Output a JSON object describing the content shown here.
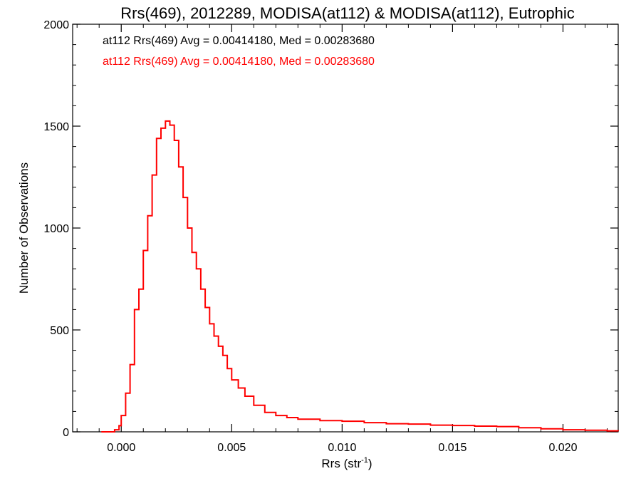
{
  "chart_data": {
    "type": "line",
    "title": "Rrs(469), 2012289, MODISA(at112) & MODISA(at112), Eutrophic",
    "xlabel_main": "Rrs (str",
    "xlabel_sup": "-1",
    "xlabel_close": ")",
    "ylabel": "Number of Observations",
    "xlim": [
      -0.0022,
      0.0225
    ],
    "ylim": [
      0,
      2000
    ],
    "x_ticks": [
      0.0,
      0.005,
      0.01,
      0.015,
      0.02
    ],
    "x_tick_labels": [
      "0.000",
      "0.005",
      "0.010",
      "0.015",
      "0.020"
    ],
    "y_ticks": [
      0,
      500,
      1000,
      1500,
      2000
    ],
    "y_tick_labels": [
      "0",
      "500",
      "1000",
      "1500",
      "2000"
    ],
    "legend": [
      {
        "text": "at112 Rrs(469) Avg = 0.00414180, Med = 0.00283680",
        "color": "#000000"
      },
      {
        "text": "at112 Rrs(469) Avg = 0.00414180, Med = 0.00283680",
        "color": "#ff0000"
      }
    ],
    "series": [
      {
        "color": "#ff0000",
        "x": [
          -0.0009,
          -0.0003,
          -0.0001,
          0.0,
          0.0002,
          0.0004,
          0.0006,
          0.0008,
          0.001,
          0.0012,
          0.0014,
          0.0016,
          0.0018,
          0.002,
          0.0022,
          0.0024,
          0.0026,
          0.0028,
          0.003,
          0.0032,
          0.0034,
          0.0036,
          0.0038,
          0.004,
          0.0042,
          0.0044,
          0.0046,
          0.0048,
          0.005,
          0.0053,
          0.0056,
          0.006,
          0.0065,
          0.007,
          0.0075,
          0.008,
          0.009,
          0.01,
          0.011,
          0.012,
          0.013,
          0.014,
          0.015,
          0.016,
          0.017,
          0.018,
          0.019,
          0.02,
          0.021,
          0.022,
          0.0225
        ],
        "y": [
          0,
          10,
          30,
          80,
          190,
          330,
          600,
          700,
          890,
          1060,
          1260,
          1440,
          1490,
          1525,
          1505,
          1430,
          1300,
          1150,
          1000,
          880,
          800,
          700,
          610,
          530,
          470,
          420,
          375,
          310,
          255,
          215,
          175,
          130,
          95,
          80,
          70,
          62,
          55,
          52,
          45,
          40,
          38,
          33,
          31,
          28,
          26,
          20,
          15,
          10,
          8,
          5,
          3
        ]
      }
    ]
  }
}
